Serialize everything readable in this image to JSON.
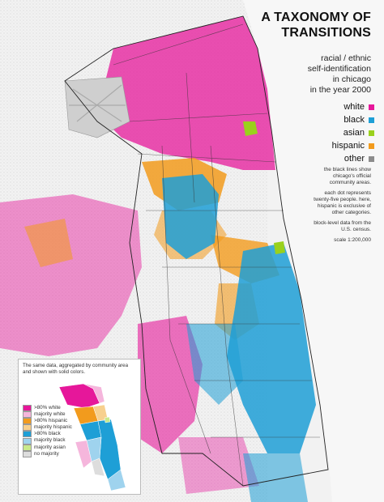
{
  "title_line1": "A TAXONOMY OF",
  "title_line2": "TRANSITIONS",
  "subtitle": [
    "racial / ethnic",
    "self-identification",
    "in chicago",
    "in the year 2000"
  ],
  "legend": [
    {
      "label": "white",
      "color": "#e6179a"
    },
    {
      "label": "black",
      "color": "#1e9fd6"
    },
    {
      "label": "asian",
      "color": "#9ad11c"
    },
    {
      "label": "hispanic",
      "color": "#f29b1d"
    },
    {
      "label": "other",
      "color": "#8c8c8c"
    }
  ],
  "notes": [
    "the black lines show chicago's official community areas.",
    "each dot represents twenty-five people. here, hispanic is exclusive of other categories.",
    "block-level data from the U.S. census.",
    "scale 1:200,000"
  ],
  "inset": {
    "description": "The same data, aggregated by community area and shown with solid colors.",
    "legend": [
      {
        "label": ">80% white",
        "color": "#e6179a"
      },
      {
        "label": "majority white",
        "color": "#f5b6dc"
      },
      {
        "label": ">80% hispanic",
        "color": "#f29b1d"
      },
      {
        "label": "majority hispanic",
        "color": "#f7d08e"
      },
      {
        "label": ">80% black",
        "color": "#1e9fd6"
      },
      {
        "label": "majority black",
        "color": "#9fd3ee"
      },
      {
        "label": "majority asian",
        "color": "#c9e98b"
      },
      {
        "label": "no majority",
        "color": "#dddddd"
      }
    ]
  }
}
